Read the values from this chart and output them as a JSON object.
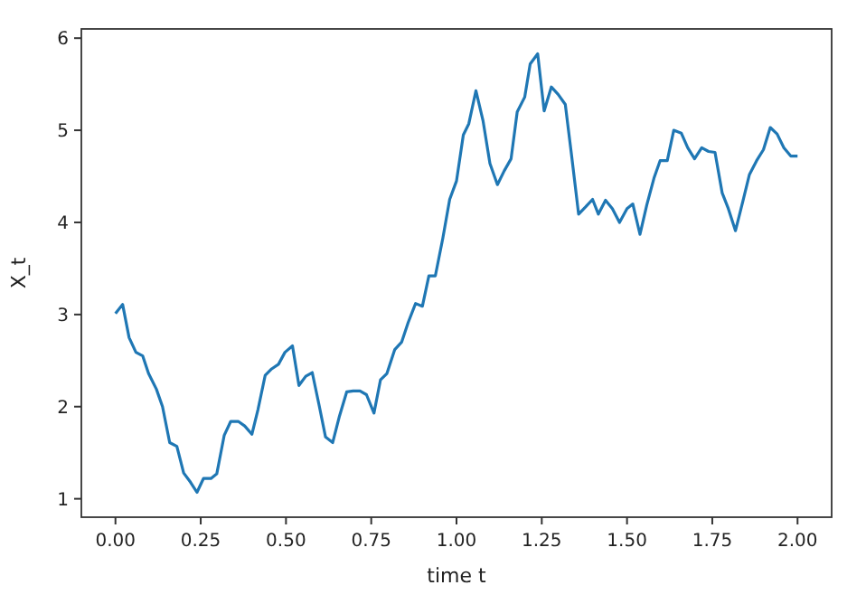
{
  "chart_data": {
    "type": "line",
    "xlabel": "time t",
    "ylabel": "X_t",
    "xlim": [
      -0.1,
      2.1
    ],
    "ylim": [
      0.8,
      6.1
    ],
    "xticks": [
      {
        "value": 0,
        "label": "0.00"
      },
      {
        "value": 0.25,
        "label": "0.25"
      },
      {
        "value": 0.5,
        "label": "0.50"
      },
      {
        "value": 0.75,
        "label": "0.75"
      },
      {
        "value": 1,
        "label": "1.00"
      },
      {
        "value": 1.25,
        "label": "1.25"
      },
      {
        "value": 1.5,
        "label": "1.50"
      },
      {
        "value": 1.75,
        "label": "1.75"
      },
      {
        "value": 2,
        "label": "2.00"
      }
    ],
    "yticks": [
      1,
      2,
      3,
      4,
      5,
      6
    ],
    "grid": false,
    "x": [
      0,
      0.021,
      0.04,
      0.06,
      0.08,
      0.097,
      0.12,
      0.138,
      0.159,
      0.18,
      0.2,
      0.22,
      0.239,
      0.258,
      0.28,
      0.297,
      0.319,
      0.338,
      0.36,
      0.379,
      0.4,
      0.418,
      0.439,
      0.458,
      0.478,
      0.497,
      0.519,
      0.538,
      0.558,
      0.577,
      0.598,
      0.616,
      0.637,
      0.657,
      0.678,
      0.697,
      0.717,
      0.736,
      0.758,
      0.777,
      0.796,
      0.819,
      0.839,
      0.858,
      0.88,
      0.9,
      0.919,
      0.938,
      0.96,
      0.98,
      1.0,
      1.02,
      1.036,
      1.057,
      1.078,
      1.098,
      1.12,
      1.14,
      1.16,
      1.178,
      1.2,
      1.216,
      1.238,
      1.257,
      1.278,
      1.298,
      1.319,
      1.337,
      1.358,
      1.379,
      1.399,
      1.416,
      1.437,
      1.457,
      1.478,
      1.5,
      1.517,
      1.538,
      1.558,
      1.579,
      1.597,
      1.618,
      1.637,
      1.659,
      1.678,
      1.698,
      1.719,
      1.739,
      1.758,
      1.779,
      1.797,
      1.818,
      1.839,
      1.859,
      1.88,
      1.9,
      1.92,
      1.94,
      1.96,
      1.98,
      2.0
    ],
    "series": [
      {
        "color": "#1f77b4",
        "values": [
          3.01,
          3.11,
          2.75,
          2.59,
          2.55,
          2.36,
          2.19,
          2.0,
          1.61,
          1.57,
          1.28,
          1.18,
          1.07,
          1.22,
          1.22,
          1.27,
          1.69,
          1.84,
          1.84,
          1.79,
          1.7,
          1.97,
          2.34,
          2.41,
          2.46,
          2.59,
          2.66,
          2.23,
          2.33,
          2.37,
          2.0,
          1.67,
          1.61,
          1.9,
          2.16,
          2.17,
          2.17,
          2.13,
          1.93,
          2.29,
          2.36,
          2.62,
          2.7,
          2.91,
          3.12,
          3.09,
          3.42,
          3.42,
          3.83,
          4.25,
          4.45,
          4.95,
          5.07,
          5.43,
          5.1,
          4.64,
          4.41,
          4.56,
          4.69,
          5.2,
          5.36,
          5.72,
          5.83,
          5.21,
          5.47,
          5.39,
          5.28,
          4.74,
          4.09,
          4.17,
          4.25,
          4.09,
          4.24,
          4.15,
          4.0,
          4.15,
          4.2,
          3.87,
          4.19,
          4.48,
          4.67,
          4.67,
          5.0,
          4.97,
          4.81,
          4.69,
          4.81,
          4.77,
          4.76,
          4.32,
          4.15,
          3.91,
          4.22,
          4.52,
          4.67,
          4.79,
          5.03,
          4.96,
          4.81,
          4.72,
          4.72
        ]
      }
    ]
  }
}
